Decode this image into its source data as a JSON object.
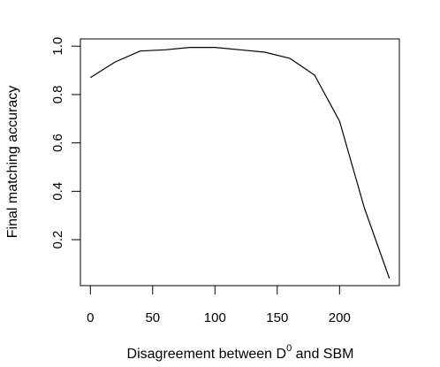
{
  "chart_data": {
    "type": "line",
    "title": "",
    "xlabel_pre": "Disagreement between D",
    "xlabel_sup": "0",
    "xlabel_post": " and SBM",
    "ylabel": "Final matching accuracy",
    "xlim": [
      -8,
      248
    ],
    "ylim": [
      0.01,
      1.03
    ],
    "grid": false,
    "legend": "none",
    "line_color": "#000000",
    "x_ticks": [
      0,
      50,
      100,
      150,
      200
    ],
    "x_tick_labels": [
      "0",
      "50",
      "100",
      "150",
      "200"
    ],
    "y_ticks": [
      0.2,
      0.4,
      0.6,
      0.8,
      1.0
    ],
    "y_tick_labels": [
      "0.2",
      "0.4",
      "0.6",
      "0.8",
      "1.0"
    ],
    "series": [
      {
        "x": [
          0,
          20,
          40,
          60,
          80,
          100,
          120,
          140,
          160,
          180,
          200,
          220,
          240
        ],
        "values": [
          0.87,
          0.935,
          0.98,
          0.985,
          0.995,
          0.995,
          0.985,
          0.975,
          0.95,
          0.88,
          0.69,
          0.33,
          0.04
        ]
      }
    ]
  }
}
